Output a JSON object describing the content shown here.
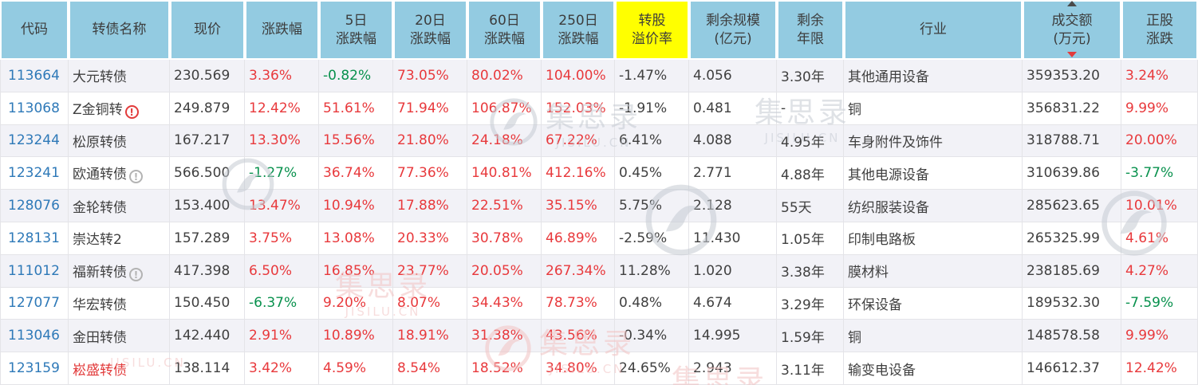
{
  "colors": {
    "header_bg": "#93cbe1",
    "highlight_bg": "#ffff00",
    "up_red": "#e8393c",
    "down_green": "#08914d",
    "code_link_blue": "#2e79b8",
    "alert_name_red": "#e23b3b",
    "row_odd_bg": "#f2f2f7",
    "row_even_bg": "#ffffff"
  },
  "watermark": {
    "cn": "集思录",
    "en": "JISILU.CN"
  },
  "table": {
    "columns": [
      {
        "key": "code",
        "label": "代码"
      },
      {
        "key": "name",
        "label": "转债名称"
      },
      {
        "key": "price",
        "label": "现价"
      },
      {
        "key": "change",
        "label": "涨跌幅",
        "pct": true
      },
      {
        "key": "chg5",
        "label": "5日|涨跌幅",
        "pct": true
      },
      {
        "key": "chg20",
        "label": "20日|涨跌幅",
        "pct": true
      },
      {
        "key": "chg60",
        "label": "60日|涨跌幅",
        "pct": true
      },
      {
        "key": "chg250",
        "label": "250日|涨跌幅",
        "pct": true
      },
      {
        "key": "premium",
        "label": "转股|溢价率",
        "highlight": true
      },
      {
        "key": "size",
        "label": "剩余规模|(亿元)"
      },
      {
        "key": "years",
        "label": "剩余|年限"
      },
      {
        "key": "industry",
        "label": "行业"
      },
      {
        "key": "turnover",
        "label": "成交额|(万元)",
        "sort": "desc"
      },
      {
        "key": "stock_change",
        "label": "正股|涨跌",
        "pct": true
      }
    ],
    "rows": [
      {
        "code": "113664",
        "name": "大元转债",
        "icon": null,
        "name_red": false,
        "price": "230.569",
        "change": "3.36%",
        "chg5": "-0.82%",
        "chg20": "73.05%",
        "chg60": "80.02%",
        "chg250": "104.00%",
        "premium": "-1.47%",
        "size": "4.056",
        "years": "3.30年",
        "industry": "其他通用设备",
        "turnover": "359353.20",
        "stock_change": "3.24%"
      },
      {
        "code": "113068",
        "name": "Z金铜转",
        "icon": "red-warning",
        "name_red": false,
        "price": "249.879",
        "change": "12.42%",
        "chg5": "51.61%",
        "chg20": "71.94%",
        "chg60": "106.87%",
        "chg250": "152.03%",
        "premium": "-1.91%",
        "size": "0.481",
        "years": "-",
        "industry": "铜",
        "turnover": "356831.22",
        "stock_change": "9.99%"
      },
      {
        "code": "123244",
        "name": "松原转债",
        "icon": null,
        "name_red": false,
        "price": "167.217",
        "change": "13.30%",
        "chg5": "15.56%",
        "chg20": "21.80%",
        "chg60": "24.18%",
        "chg250": "67.22%",
        "premium": "6.41%",
        "size": "4.088",
        "years": "4.95年",
        "industry": "车身附件及饰件",
        "turnover": "318788.71",
        "stock_change": "20.00%"
      },
      {
        "code": "123241",
        "name": "欧通转债",
        "icon": "gray-info",
        "name_red": false,
        "price": "566.500",
        "change": "-1.27%",
        "chg5": "36.74%",
        "chg20": "77.36%",
        "chg60": "140.81%",
        "chg250": "412.16%",
        "premium": "0.45%",
        "size": "2.771",
        "years": "4.88年",
        "industry": "其他电源设备",
        "turnover": "310639.86",
        "stock_change": "-3.77%"
      },
      {
        "code": "128076",
        "name": "金轮转债",
        "icon": null,
        "name_red": false,
        "price": "153.400",
        "change": "13.47%",
        "chg5": "10.94%",
        "chg20": "17.88%",
        "chg60": "22.51%",
        "chg250": "35.15%",
        "premium": "5.75%",
        "size": "2.128",
        "years": "55天",
        "industry": "纺织服装设备",
        "turnover": "285623.65",
        "stock_change": "10.01%"
      },
      {
        "code": "128131",
        "name": "崇达转2",
        "icon": null,
        "name_red": false,
        "price": "157.289",
        "change": "3.75%",
        "chg5": "13.08%",
        "chg20": "20.33%",
        "chg60": "30.78%",
        "chg250": "46.89%",
        "premium": "-2.59%",
        "size": "11.430",
        "years": "1.05年",
        "industry": "印制电路板",
        "turnover": "265325.99",
        "stock_change": "4.61%"
      },
      {
        "code": "111012",
        "name": "福新转债",
        "icon": "gray-info",
        "name_red": false,
        "price": "417.398",
        "change": "6.50%",
        "chg5": "16.85%",
        "chg20": "23.77%",
        "chg60": "20.05%",
        "chg250": "267.34%",
        "premium": "11.28%",
        "size": "1.020",
        "years": "3.38年",
        "industry": "膜材料",
        "turnover": "238185.69",
        "stock_change": "4.27%"
      },
      {
        "code": "127077",
        "name": "华宏转债",
        "icon": null,
        "name_red": false,
        "price": "150.450",
        "change": "-6.37%",
        "chg5": "9.20%",
        "chg20": "8.07%",
        "chg60": "34.43%",
        "chg250": "78.73%",
        "premium": "0.48%",
        "size": "4.674",
        "years": "3.29年",
        "industry": "环保设备",
        "turnover": "189532.30",
        "stock_change": "-7.59%"
      },
      {
        "code": "113046",
        "name": "金田转债",
        "icon": null,
        "name_red": false,
        "price": "142.440",
        "change": "2.91%",
        "chg5": "10.89%",
        "chg20": "18.91%",
        "chg60": "31.38%",
        "chg250": "43.56%",
        "premium": "-0.34%",
        "size": "14.995",
        "years": "1.59年",
        "industry": "铜",
        "turnover": "148578.58",
        "stock_change": "9.99%"
      },
      {
        "code": "123159",
        "name": "崧盛转债",
        "icon": null,
        "name_red": true,
        "price": "138.114",
        "change": "3.42%",
        "chg5": "4.59%",
        "chg20": "8.54%",
        "chg60": "18.52%",
        "chg250": "34.80%",
        "premium": "24.65%",
        "size": "2.943",
        "years": "3.11年",
        "industry": "输变电设备",
        "turnover": "146612.37",
        "stock_change": "12.42%"
      }
    ]
  }
}
